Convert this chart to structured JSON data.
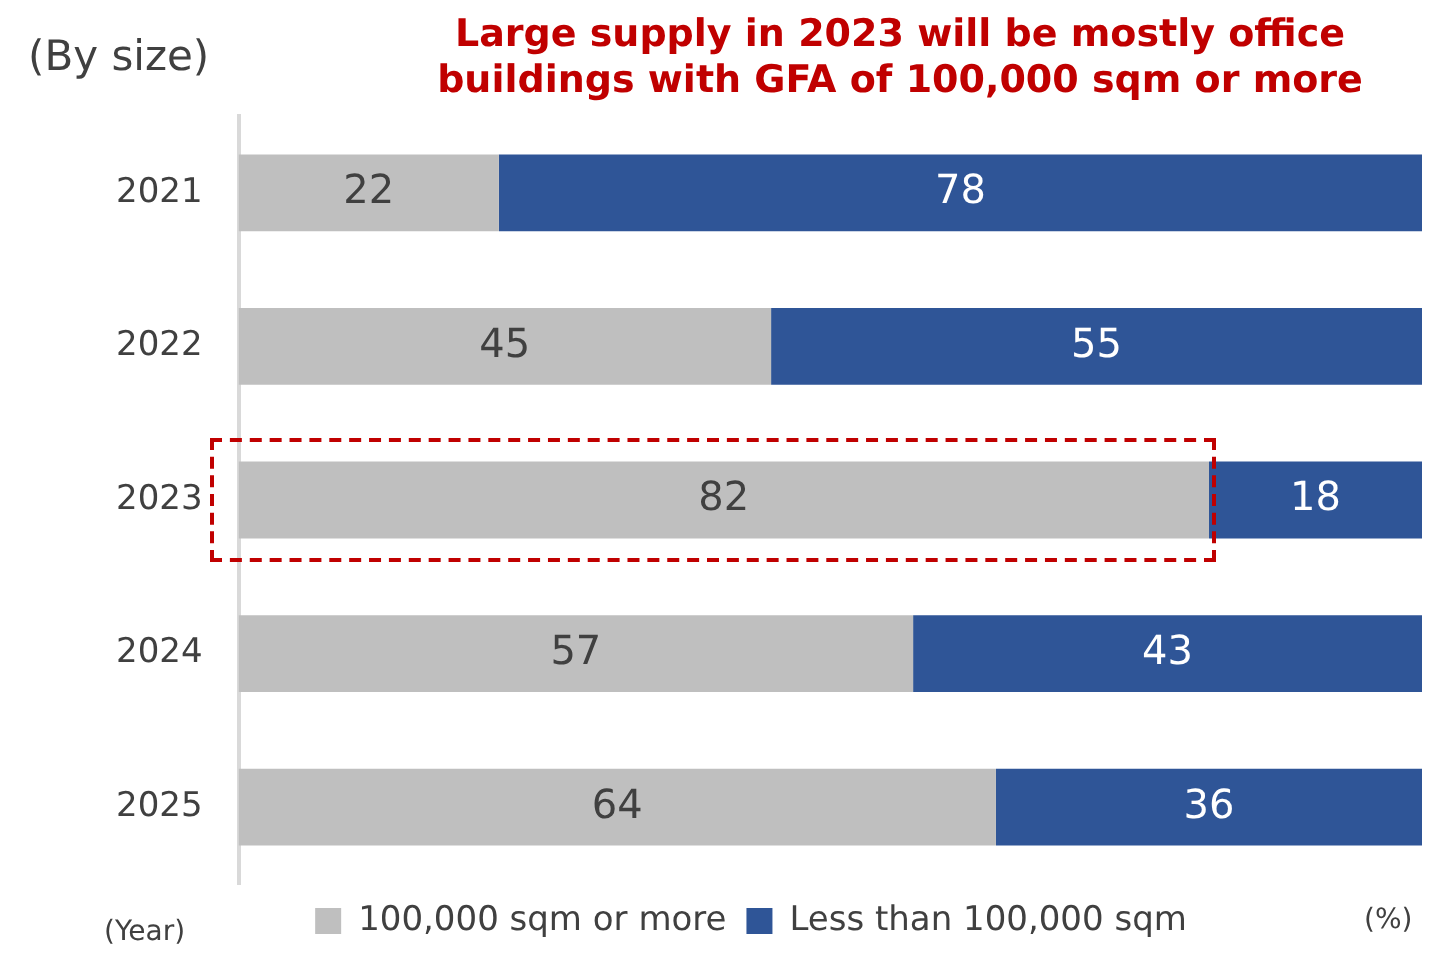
{
  "chart_data": {
    "type": "bar",
    "orientation": "horizontal",
    "stacked": true,
    "ylabel": "(By size)",
    "xlabel": "(%)",
    "title": "Large supply in 2023 will be mostly office buildings with GFA of 100,000 sqm or more",
    "annotations": [
      "(Year)"
    ],
    "categories": [
      "2021",
      "2022",
      "2023",
      "2024",
      "2025"
    ],
    "series": [
      {
        "name": "100,000 sqm or more",
        "color": "#bfbfbf",
        "values": [
          22,
          45,
          82,
          57,
          64
        ]
      },
      {
        "name": "Less than 100,000 sqm",
        "color": "#2f5597",
        "values": [
          78,
          55,
          18,
          43,
          36
        ]
      }
    ],
    "data_labels": true,
    "legend": "bottom",
    "grid": false
  }
}
